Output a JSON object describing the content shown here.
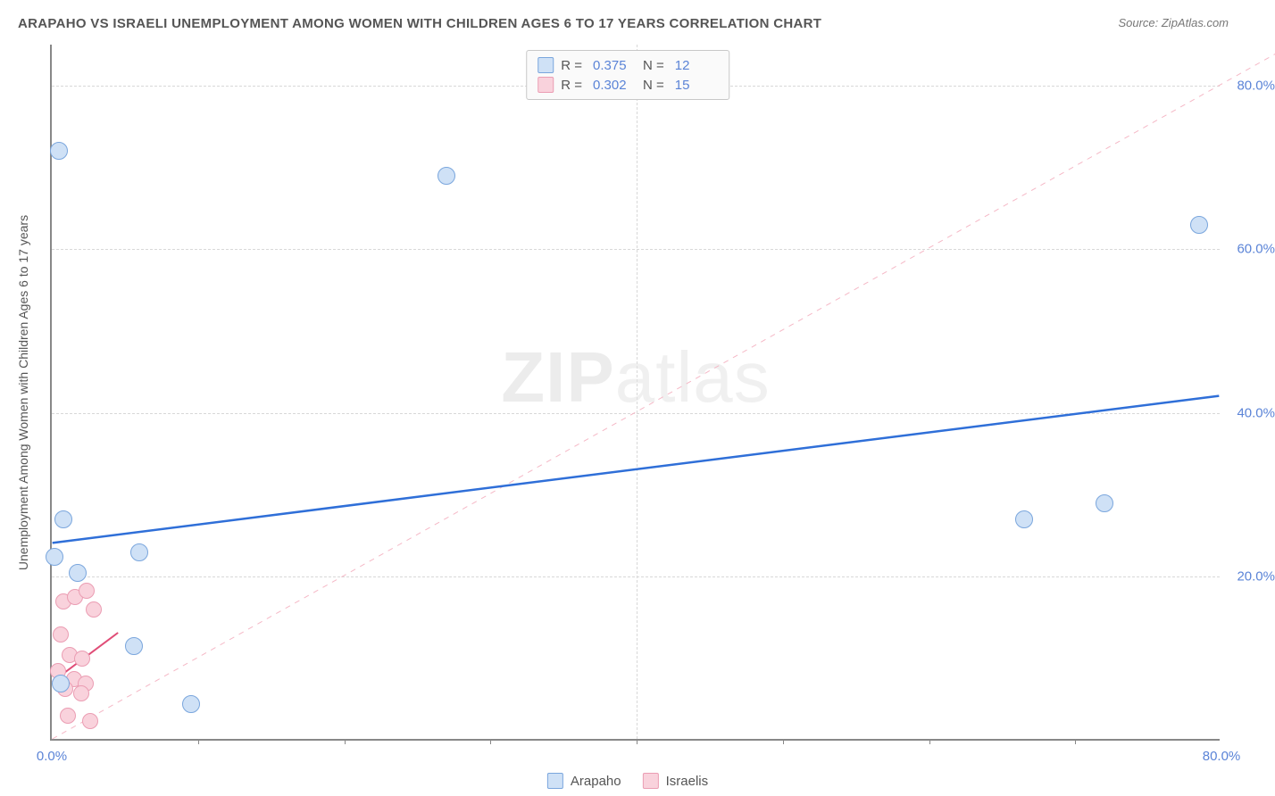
{
  "title": "ARAPAHO VS ISRAELI UNEMPLOYMENT AMONG WOMEN WITH CHILDREN AGES 6 TO 17 YEARS CORRELATION CHART",
  "source": "Source: ZipAtlas.com",
  "y_axis_label": "Unemployment Among Women with Children Ages 6 to 17 years",
  "watermark_z": "ZIP",
  "watermark_a": "atlas",
  "chart": {
    "type": "scatter",
    "xlim": [
      0,
      80
    ],
    "ylim": [
      0,
      85
    ],
    "x_ticks": [
      0,
      80
    ],
    "y_ticks": [
      20,
      40,
      60,
      80
    ],
    "x_tick_labels": [
      "0.0%",
      "80.0%"
    ],
    "y_tick_labels": [
      "20.0%",
      "40.0%",
      "60.0%",
      "80.0%"
    ],
    "x_minor_ticks": [
      10,
      20,
      30,
      40,
      50,
      60,
      70
    ],
    "grid_color": "#d8d8d8",
    "axis_color": "#888888",
    "background": "#ffffff",
    "marker_radius_blue": 10,
    "marker_radius_pink": 9,
    "reference_line": {
      "x1": 0,
      "y1": 0,
      "x2": 85,
      "y2": 85,
      "color": "#f5b8c6",
      "dash": "6,6",
      "width": 1
    }
  },
  "series_blue": {
    "name": "Arapaho",
    "fill": "#cfe1f6",
    "stroke": "#7aa6dd",
    "r_label": "R =",
    "r_value": "0.375",
    "n_label": "N =",
    "n_value": "12",
    "trend": {
      "x1": 0,
      "y1": 24,
      "x2": 80,
      "y2": 42,
      "color": "#2f6fd8",
      "width": 2.5
    },
    "points": [
      {
        "x": 0.5,
        "y": 72
      },
      {
        "x": 0.2,
        "y": 22.5
      },
      {
        "x": 0.8,
        "y": 27
      },
      {
        "x": 1.8,
        "y": 20.5
      },
      {
        "x": 6.0,
        "y": 23
      },
      {
        "x": 5.6,
        "y": 11.5
      },
      {
        "x": 9.5,
        "y": 4.5
      },
      {
        "x": 0.6,
        "y": 7
      },
      {
        "x": 66.5,
        "y": 27
      },
      {
        "x": 72,
        "y": 29
      },
      {
        "x": 78.5,
        "y": 63
      },
      {
        "x": 27,
        "y": 69
      }
    ]
  },
  "series_pink": {
    "name": "Israelis",
    "fill": "#f9d2dc",
    "stroke": "#eb9db3",
    "r_label": "R =",
    "r_value": "0.302",
    "n_label": "N =",
    "n_value": "15",
    "trend": {
      "x1": 0,
      "y1": 7,
      "x2": 4.5,
      "y2": 13,
      "color": "#e04d77",
      "width": 2
    },
    "points": [
      {
        "x": 0.8,
        "y": 17
      },
      {
        "x": 1.6,
        "y": 17.5
      },
      {
        "x": 2.4,
        "y": 18.3
      },
      {
        "x": 2.9,
        "y": 16
      },
      {
        "x": 0.6,
        "y": 13
      },
      {
        "x": 1.2,
        "y": 10.5
      },
      {
        "x": 2.1,
        "y": 10
      },
      {
        "x": 0.4,
        "y": 8.5
      },
      {
        "x": 1.5,
        "y": 7.5
      },
      {
        "x": 2.3,
        "y": 7
      },
      {
        "x": 0.9,
        "y": 6.3
      },
      {
        "x": 2.0,
        "y": 5.8
      },
      {
        "x": 1.1,
        "y": 3
      },
      {
        "x": 2.6,
        "y": 2.4
      },
      {
        "x": 0.6,
        "y": 7
      }
    ]
  }
}
